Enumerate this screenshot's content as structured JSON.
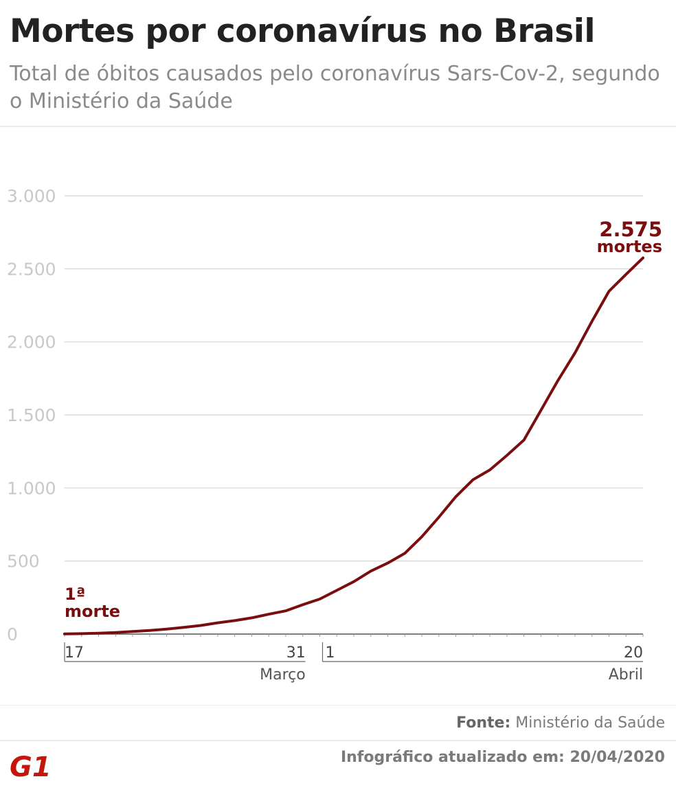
{
  "header": {
    "title": "Mortes por coronavírus no Brasil",
    "subtitle": "Total de óbitos causados pelo coronavírus Sars-Cov-2, segundo o Ministério da Saúde"
  },
  "chart_data": {
    "type": "line",
    "title": "Mortes por coronavírus no Brasil",
    "subtitle": "Total de óbitos causados pelo coronavírus Sars-Cov-2, segundo o Ministério da Saúde",
    "xlabel": "",
    "ylabel": "",
    "x": [
      "2020-03-17",
      "2020-03-18",
      "2020-03-19",
      "2020-03-20",
      "2020-03-21",
      "2020-03-22",
      "2020-03-23",
      "2020-03-24",
      "2020-03-25",
      "2020-03-26",
      "2020-03-27",
      "2020-03-28",
      "2020-03-29",
      "2020-03-30",
      "2020-03-31",
      "2020-04-01",
      "2020-04-02",
      "2020-04-03",
      "2020-04-04",
      "2020-04-05",
      "2020-04-06",
      "2020-04-07",
      "2020-04-08",
      "2020-04-09",
      "2020-04-10",
      "2020-04-11",
      "2020-04-12",
      "2020-04-13",
      "2020-04-14",
      "2020-04-15",
      "2020-04-16",
      "2020-04-17",
      "2020-04-18",
      "2020-04-19",
      "2020-04-20"
    ],
    "series": [
      {
        "values": [
          1,
          3,
          6,
          11,
          18,
          25,
          34,
          46,
          59,
          77,
          92,
          111,
          136,
          159,
          201,
          240,
          299,
          359,
          431,
          486,
          553,
          667,
          800,
          941,
          1056,
          1124,
          1223,
          1328,
          1532,
          1736,
          1924,
          2141,
          2347,
          2462,
          2575
        ],
        "color": "#7a0e0e"
      }
    ],
    "xlim": [
      "2020-03-17",
      "2020-04-20"
    ],
    "ylim": [
      0,
      3000
    ],
    "yticks": [
      0,
      500,
      1000,
      1500,
      2000,
      2500,
      3000
    ],
    "ytick_labels": [
      "0",
      "500",
      "1.000",
      "1.500",
      "2.000",
      "2.500",
      "3.000"
    ],
    "grid": true,
    "x_ticks": [
      {
        "date": "2020-03-17",
        "label": "17"
      },
      {
        "date": "2020-03-31",
        "label": "31"
      },
      {
        "date": "2020-04-01",
        "label": "1"
      },
      {
        "date": "2020-04-20",
        "label": "20"
      }
    ],
    "month_groups": [
      {
        "start": "2020-03-17",
        "end": "2020-03-31",
        "label": "Março"
      },
      {
        "start": "2020-04-01",
        "end": "2020-04-20",
        "label": "Abril"
      }
    ],
    "annotations": [
      {
        "date": "2020-03-17",
        "lines": [
          "1ª",
          "morte"
        ],
        "position": "above-start"
      },
      {
        "date": "2020-04-20",
        "lines": [
          "2.575",
          "mortes"
        ],
        "position": "above-end"
      }
    ],
    "legend": "none"
  },
  "footer": {
    "source_label": "Fonte:",
    "source_text": " Ministério da Saúde",
    "updated": "Infográfico atualizado em: 20/04/2020",
    "logo_text": "G1",
    "logo_color": "#c4170c"
  }
}
